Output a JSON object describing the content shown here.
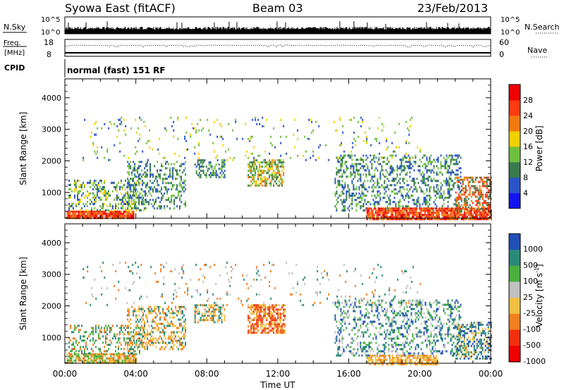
{
  "header": {
    "station": "Syowa East (fitACF)",
    "beam": "Beam 03",
    "date": "23/Feb/2013"
  },
  "summary_panels": {
    "nsky": {
      "label": "N.Sky",
      "ytick_top": "10^5",
      "ytick_bottom": "10^0",
      "right_label": "N.Search",
      "right_top": "10^5",
      "right_bottom": "10^0"
    },
    "freq": {
      "label_line1": "Freq.",
      "label_line2": "[MHz]",
      "ytick_top": "18",
      "ytick_bottom": "8",
      "right_label": "Nave",
      "right_top": "60",
      "right_bottom": "0"
    },
    "cpid": {
      "label": "CPID",
      "mode": "normal (fast) 151 RF"
    }
  },
  "chart_data": [
    {
      "type": "heatmap",
      "panel": "power",
      "ylabel": "Slant Range [km]",
      "xlabel": "",
      "ylim": [
        180,
        4600
      ],
      "yticks": [
        1000,
        2000,
        3000,
        4000
      ],
      "colorbar": {
        "label": "Power [dB]",
        "ticks": [
          "4",
          "8",
          "12",
          "16",
          "20",
          "24",
          "28"
        ],
        "levels": [
          {
            "min": 0,
            "max": 4,
            "color": "#1414f0"
          },
          {
            "min": 4,
            "max": 8,
            "color": "#2a55c8"
          },
          {
            "min": 8,
            "max": 12,
            "color": "#3a7a50"
          },
          {
            "min": 12,
            "max": 16,
            "color": "#70c040"
          },
          {
            "min": 16,
            "max": 20,
            "color": "#f0d000"
          },
          {
            "min": 20,
            "max": 24,
            "color": "#f07a10"
          },
          {
            "min": 24,
            "max": 28,
            "color": "#ff3a10"
          },
          {
            "min": 28,
            "max": 32,
            "color": "#ee0000"
          }
        ]
      },
      "regions": [
        {
          "t0": 0.1,
          "t1": 3.9,
          "r0": 180,
          "r1": 420,
          "colors": [
            "#ee0000",
            "#ff3a10",
            "#f07a10"
          ],
          "density": 0.9
        },
        {
          "t0": 0.2,
          "t1": 4.5,
          "r0": 420,
          "r1": 1400,
          "colors": [
            "#3a7a50",
            "#2a55c8",
            "#70c040",
            "#f0d000"
          ],
          "density": 0.35
        },
        {
          "t0": 3.5,
          "t1": 6.8,
          "r0": 500,
          "r1": 2000,
          "colors": [
            "#2a55c8",
            "#3a7a50",
            "#70c040"
          ],
          "density": 0.35
        },
        {
          "t0": 7.3,
          "t1": 9.0,
          "r0": 1500,
          "r1": 2050,
          "colors": [
            "#2a55c8",
            "#3a7a50",
            "#70c040"
          ],
          "density": 0.45
        },
        {
          "t0": 10.3,
          "t1": 12.3,
          "r0": 1200,
          "r1": 2050,
          "colors": [
            "#70c040",
            "#f0d000",
            "#f07a10",
            "#3a7a50"
          ],
          "density": 0.6
        },
        {
          "t0": 15.2,
          "t1": 22.3,
          "r0": 400,
          "r1": 2200,
          "colors": [
            "#2a55c8",
            "#3a7a50",
            "#70c040"
          ],
          "density": 0.32
        },
        {
          "t0": 17.0,
          "t1": 24.0,
          "r0": 180,
          "r1": 520,
          "colors": [
            "#ee0000",
            "#ff3a10",
            "#f07a10"
          ],
          "density": 0.85
        },
        {
          "t0": 22.0,
          "t1": 24.0,
          "r0": 400,
          "r1": 1500,
          "colors": [
            "#ff3a10",
            "#f07a10",
            "#3a7a50"
          ],
          "density": 0.5
        },
        {
          "t0": 1.0,
          "t1": 20.0,
          "r0": 2000,
          "r1": 3400,
          "colors": [
            "#2a55c8",
            "#f0d000",
            "#70c040"
          ],
          "density": 0.05
        }
      ]
    },
    {
      "type": "heatmap",
      "panel": "velocity",
      "ylabel": "Slant Range [km]",
      "xlabel": "Time UT",
      "ylim": [
        180,
        4600
      ],
      "yticks": [
        1000,
        2000,
        3000,
        4000
      ],
      "colorbar": {
        "label": "Velocity [m s^-1]",
        "ticks": [
          "1000",
          "500",
          "100",
          "25",
          "-25",
          "-100",
          "-500",
          "-1000"
        ],
        "levels": [
          {
            "min": 500,
            "max": 1000,
            "color": "#2050b8"
          },
          {
            "min": 100,
            "max": 500,
            "color": "#2a8a7a"
          },
          {
            "min": 25,
            "max": 100,
            "color": "#4ab040"
          },
          {
            "min": -25,
            "max": 25,
            "color": "#c0c0c0"
          },
          {
            "min": -100,
            "max": -25,
            "color": "#f0c040"
          },
          {
            "min": -500,
            "max": -100,
            "color": "#f08020"
          },
          {
            "min": -1000,
            "max": -500,
            "color": "#f03010"
          },
          {
            "min": -1500,
            "max": -1000,
            "color": "#ee0000"
          }
        ]
      },
      "regions": [
        {
          "t0": 0.1,
          "t1": 4.0,
          "r0": 180,
          "r1": 500,
          "colors": [
            "#f08020",
            "#f0c040",
            "#4ab040"
          ],
          "density": 0.8
        },
        {
          "t0": 0.2,
          "t1": 4.5,
          "r0": 500,
          "r1": 1400,
          "colors": [
            "#2a8a7a",
            "#4ab040",
            "#f08020"
          ],
          "density": 0.3
        },
        {
          "t0": 3.5,
          "t1": 6.8,
          "r0": 600,
          "r1": 2000,
          "colors": [
            "#f08020",
            "#f0c040",
            "#2a8a7a"
          ],
          "density": 0.35
        },
        {
          "t0": 7.3,
          "t1": 9.0,
          "r0": 1500,
          "r1": 2050,
          "colors": [
            "#f08020",
            "#f0c040",
            "#2a8a7a"
          ],
          "density": 0.5
        },
        {
          "t0": 10.3,
          "t1": 12.4,
          "r0": 1150,
          "r1": 2050,
          "colors": [
            "#f03010",
            "#f08020",
            "#f0c040"
          ],
          "density": 0.65
        },
        {
          "t0": 15.2,
          "t1": 22.3,
          "r0": 400,
          "r1": 2200,
          "colors": [
            "#2a8a7a",
            "#4ab040",
            "#2050b8",
            "#c0c0c0"
          ],
          "density": 0.32
        },
        {
          "t0": 17.0,
          "t1": 21.0,
          "r0": 180,
          "r1": 450,
          "colors": [
            "#f0c040",
            "#f08020"
          ],
          "density": 0.7
        },
        {
          "t0": 22.0,
          "t1": 24.0,
          "r0": 350,
          "r1": 1500,
          "colors": [
            "#2050b8",
            "#2a8a7a",
            "#f0c040"
          ],
          "density": 0.5
        },
        {
          "t0": 1.0,
          "t1": 20.0,
          "r0": 2000,
          "r1": 3400,
          "colors": [
            "#2a8a7a",
            "#f08020",
            "#c0c0c0"
          ],
          "density": 0.05
        }
      ]
    }
  ],
  "time_axis": {
    "xlabel": "Time UT",
    "ticks": [
      "00:00",
      "04:00",
      "08:00",
      "12:00",
      "16:00",
      "20:00",
      "00:00"
    ],
    "range_hours": [
      0,
      24
    ]
  }
}
